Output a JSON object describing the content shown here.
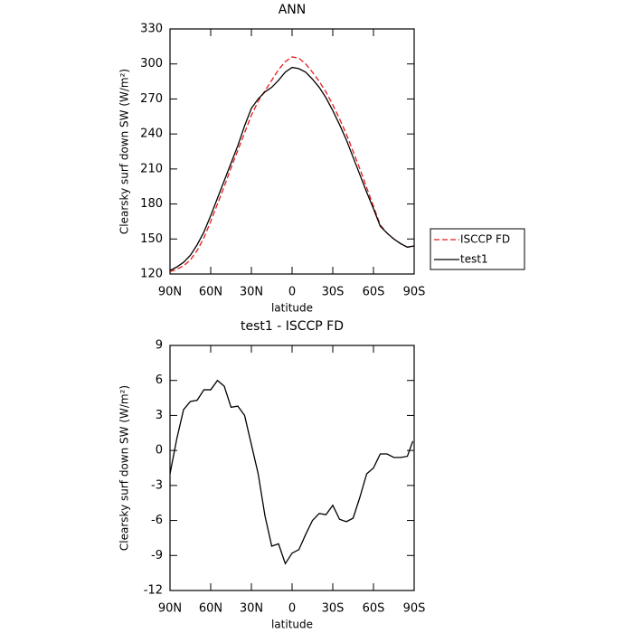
{
  "chart_data": [
    {
      "type": "line",
      "title": "ANN",
      "x_label": "latitude",
      "y_label": "Clearsky surf down SW (W/m²)",
      "x": [
        90,
        85,
        80,
        75,
        70,
        65,
        60,
        55,
        50,
        45,
        40,
        35,
        30,
        25,
        20,
        15,
        10,
        5,
        0,
        -5,
        -10,
        -15,
        -20,
        -25,
        -30,
        -35,
        -40,
        -45,
        -50,
        -55,
        -60,
        -65,
        -70,
        -75,
        -80,
        -85,
        -90
      ],
      "xlim": [
        90,
        -90
      ],
      "xticks": [
        {
          "value": 90,
          "label": "90N"
        },
        {
          "value": 60,
          "label": "60N"
        },
        {
          "value": 30,
          "label": "30N"
        },
        0,
        {
          "value": -30,
          "label": "30S"
        },
        {
          "value": -60,
          "label": "60S"
        },
        {
          "value": -90,
          "label": "90S"
        }
      ],
      "ylim": [
        120,
        330
      ],
      "yticks": [
        120,
        150,
        180,
        210,
        240,
        270,
        300,
        330
      ],
      "legend": "right",
      "series": [
        {
          "name": "ISCCP FD",
          "color": "#e41a1c",
          "style": "dashed",
          "values": [
            122,
            124,
            127,
            132,
            140,
            151,
            165,
            180,
            195,
            211,
            226,
            241,
            256,
            268,
            277,
            286,
            295,
            302,
            306,
            305,
            300,
            293,
            285,
            276,
            265,
            253,
            240,
            225,
            210,
            194,
            178,
            162,
            155,
            150,
            146,
            143,
            144
          ]
        },
        {
          "name": "test1",
          "color": "#000000",
          "style": "solid",
          "values": [
            123,
            126,
            130,
            136,
            145,
            156,
            170,
            185,
            200,
            215,
            230,
            247,
            262,
            270,
            276,
            280,
            286,
            293,
            297,
            296,
            293,
            287,
            280,
            271,
            260,
            248,
            235,
            220,
            205,
            190,
            176,
            161,
            155,
            150,
            146,
            143,
            144
          ]
        }
      ]
    },
    {
      "type": "line",
      "title": "test1 - ISCCP FD",
      "x_label": "latitude",
      "y_label": "Clearsky surf down SW (W/m²)",
      "x": [
        90,
        85,
        80,
        75,
        70,
        65,
        60,
        55,
        50,
        45,
        40,
        35,
        30,
        25,
        20,
        15,
        10,
        5,
        0,
        -5,
        -10,
        -15,
        -20,
        -25,
        -30,
        -35,
        -40,
        -45,
        -50,
        -55,
        -60,
        -65,
        -70,
        -75,
        -80,
        -85,
        -89
      ],
      "xlim": [
        90,
        -90
      ],
      "xticks": [
        {
          "value": 90,
          "label": "90N"
        },
        {
          "value": 60,
          "label": "60N"
        },
        {
          "value": 30,
          "label": "30N"
        },
        0,
        {
          "value": -30,
          "label": "30S"
        },
        {
          "value": -60,
          "label": "60S"
        },
        {
          "value": -90,
          "label": "90S"
        }
      ],
      "ylim": [
        -12,
        9
      ],
      "yticks": [
        -12,
        -9,
        -6,
        -3,
        0,
        3,
        6,
        9
      ],
      "color": "#000000",
      "values": [
        -2,
        1,
        3.5,
        4.2,
        4.3,
        5.2,
        5.2,
        6.0,
        5.5,
        3.7,
        3.8,
        3.0,
        0.5,
        -2.0,
        -5.6,
        -8.2,
        -8.0,
        -9.7,
        -8.8,
        -8.5,
        -7.2,
        -6.0,
        -5.4,
        -5.5,
        -4.7,
        -5.9,
        -6.1,
        -5.8,
        -4.0,
        -2.0,
        -1.5,
        -0.3,
        -0.3,
        -0.6,
        -0.6,
        -0.5,
        0.8
      ]
    }
  ]
}
